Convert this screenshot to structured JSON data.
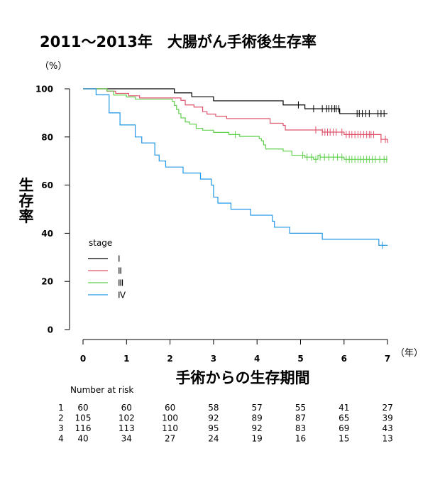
{
  "chart_data": {
    "type": "line",
    "subtype": "kaplan-meier",
    "title": "2011～2013年　大腸がん手術後生存率",
    "y_unit": "（%）",
    "x_unit": "（年）",
    "ylabel": "生存率",
    "xlabel": "手術からの生存期間",
    "xlim": [
      0,
      7
    ],
    "ylim": [
      0,
      100
    ],
    "x_ticks": [
      "0",
      "1",
      "2",
      "3",
      "4",
      "5",
      "6",
      "7"
    ],
    "y_ticks": [
      "0",
      "20",
      "40",
      "60",
      "80",
      "100"
    ],
    "grid": false,
    "legend": {
      "title": "stage",
      "placement": "lower-left",
      "entries": [
        "Ⅰ",
        "Ⅱ",
        "Ⅲ",
        "Ⅳ"
      ]
    },
    "series": [
      {
        "name": "Ⅰ",
        "color": "#000000",
        "steps": [
          [
            0,
            100
          ],
          [
            2.1,
            98.3
          ],
          [
            2.5,
            96.7
          ],
          [
            3.0,
            95.0
          ],
          [
            4.6,
            93.3
          ],
          [
            5.1,
            91.7
          ],
          [
            5.9,
            89.7
          ],
          [
            7.0,
            89.7
          ]
        ],
        "censor_x": [
          4.95,
          5.3,
          5.5,
          5.6,
          5.65,
          5.72,
          5.78,
          5.82,
          5.88,
          6.3,
          6.35,
          6.42,
          6.5,
          6.58,
          6.78,
          6.85,
          6.92
        ]
      },
      {
        "name": "Ⅱ",
        "color": "#df536b",
        "steps": [
          [
            0,
            100
          ],
          [
            0.55,
            99.0
          ],
          [
            0.75,
            98.1
          ],
          [
            1.05,
            97.1
          ],
          [
            1.3,
            96.2
          ],
          [
            2.25,
            95.2
          ],
          [
            2.35,
            93.3
          ],
          [
            2.55,
            92.4
          ],
          [
            2.75,
            90.5
          ],
          [
            2.85,
            89.5
          ],
          [
            3.05,
            88.6
          ],
          [
            3.3,
            87.6
          ],
          [
            4.3,
            85.7
          ],
          [
            4.6,
            84.8
          ],
          [
            4.65,
            82.9
          ],
          [
            5.5,
            82.0
          ],
          [
            6.0,
            81.0
          ],
          [
            6.85,
            79.0
          ],
          [
            7.0,
            77.5
          ]
        ],
        "censor_x": [
          5.35,
          5.5,
          5.56,
          5.62,
          5.68,
          5.75,
          5.82,
          5.95,
          6.05,
          6.12,
          6.18,
          6.25,
          6.32,
          6.38,
          6.45,
          6.52,
          6.58,
          6.62,
          6.68,
          6.85,
          6.95
        ]
      },
      {
        "name": "Ⅲ",
        "color": "#61d04f",
        "steps": [
          [
            0,
            100
          ],
          [
            0.55,
            99.1
          ],
          [
            0.7,
            97.4
          ],
          [
            1.0,
            96.6
          ],
          [
            1.2,
            95.7
          ],
          [
            2.05,
            94.8
          ],
          [
            2.1,
            93.1
          ],
          [
            2.15,
            91.4
          ],
          [
            2.2,
            89.7
          ],
          [
            2.25,
            87.9
          ],
          [
            2.35,
            86.2
          ],
          [
            2.45,
            85.3
          ],
          [
            2.6,
            83.6
          ],
          [
            2.75,
            82.8
          ],
          [
            3.0,
            81.9
          ],
          [
            3.35,
            81.0
          ],
          [
            3.6,
            80.2
          ],
          [
            4.05,
            79.3
          ],
          [
            4.1,
            78.4
          ],
          [
            4.15,
            76.7
          ],
          [
            4.2,
            75.0
          ],
          [
            4.6,
            74.1
          ],
          [
            4.8,
            72.4
          ],
          [
            5.1,
            71.6
          ],
          [
            5.3,
            70.7
          ],
          [
            5.4,
            72.4
          ],
          [
            5.45,
            71.6
          ],
          [
            5.7,
            71.6
          ],
          [
            6.0,
            70.7
          ],
          [
            7.0,
            70.7
          ]
        ],
        "censor_x": [
          3.5,
          5.05,
          5.15,
          5.25,
          5.35,
          5.45,
          5.55,
          5.65,
          5.75,
          5.85,
          5.95,
          6.05,
          6.12,
          6.18,
          6.25,
          6.32,
          6.38,
          6.45,
          6.52,
          6.58,
          6.65,
          6.72,
          6.82,
          6.92,
          6.98
        ]
      },
      {
        "name": "Ⅳ",
        "color": "#2297e6",
        "steps": [
          [
            0,
            100
          ],
          [
            0.3,
            97.5
          ],
          [
            0.6,
            90.0
          ],
          [
            0.85,
            85.0
          ],
          [
            1.2,
            80.0
          ],
          [
            1.35,
            77.5
          ],
          [
            1.65,
            72.5
          ],
          [
            1.75,
            70.0
          ],
          [
            1.9,
            67.5
          ],
          [
            2.3,
            65.0
          ],
          [
            2.7,
            62.5
          ],
          [
            2.95,
            60.0
          ],
          [
            3.0,
            55.0
          ],
          [
            3.1,
            52.5
          ],
          [
            3.4,
            50.0
          ],
          [
            3.85,
            47.5
          ],
          [
            4.35,
            45.0
          ],
          [
            4.4,
            42.5
          ],
          [
            4.75,
            40.0
          ],
          [
            5.5,
            37.5
          ],
          [
            6.8,
            35.0
          ],
          [
            7.0,
            35.0
          ]
        ],
        "censor_x": [
          6.88
        ]
      }
    ],
    "risk_table": {
      "title": "Number at risk",
      "rows": [
        {
          "label": "1",
          "values": [
            "60",
            "60",
            "60",
            "58",
            "57",
            "55",
            "41",
            "27"
          ]
        },
        {
          "label": "2",
          "values": [
            "105",
            "102",
            "100",
            "92",
            "89",
            "87",
            "65",
            "39"
          ]
        },
        {
          "label": "3",
          "values": [
            "116",
            "113",
            "110",
            "95",
            "92",
            "83",
            "69",
            "43"
          ]
        },
        {
          "label": "4",
          "values": [
            "40",
            "34",
            "27",
            "24",
            "19",
            "16",
            "15",
            "13"
          ]
        }
      ]
    }
  }
}
